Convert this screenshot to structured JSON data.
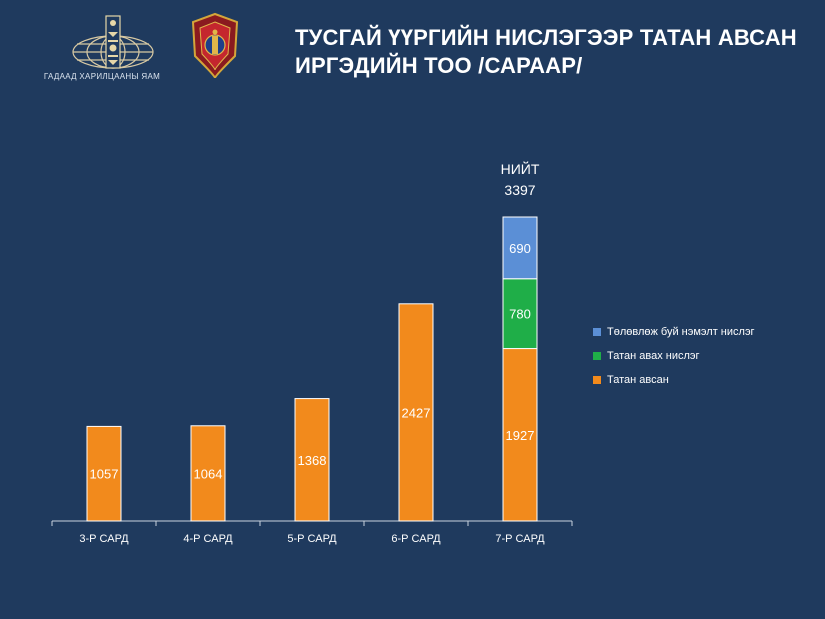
{
  "header": {
    "ministry_caption": "ГАДААД ХАРИЛЦААНЫ ЯАМ",
    "ministry_logo_icon": "soyombo-globe-emblem-icon",
    "police_logo_icon": "police-shield-emblem-icon",
    "title_line1": "ТУСГАЙ ҮҮРГИЙН НИСЛЭГЭЭР ТАТАН АВСАН",
    "title_line2": "ИРГЭДИЙН ТОО /САРААР/"
  },
  "colors": {
    "background": "#1f3a5e",
    "orange": "#f28a1c",
    "green": "#1fae48",
    "blue": "#5b8fd6"
  },
  "chart_data": {
    "type": "bar",
    "stacked": true,
    "categories": [
      "3-Р САРД",
      "4-Р САРД",
      "5-Р САРД",
      "6-Р САРД",
      "7-Р САРД"
    ],
    "series": [
      {
        "name": "Татан авсан",
        "color": "#f28a1c",
        "values": [
          1057,
          1064,
          1368,
          2427,
          1927
        ]
      },
      {
        "name": "Татан авах нислэг",
        "color": "#1fae48",
        "values": [
          0,
          0,
          0,
          0,
          780
        ]
      },
      {
        "name": "Төлөвлөж буй нэмэлт нислэг",
        "color": "#5b8fd6",
        "values": [
          0,
          0,
          0,
          0,
          690
        ]
      }
    ],
    "total_label": "НИЙТ",
    "total_value": "3397",
    "ylim": [
      0,
      3397
    ],
    "legend_position": "right",
    "grid": false
  }
}
